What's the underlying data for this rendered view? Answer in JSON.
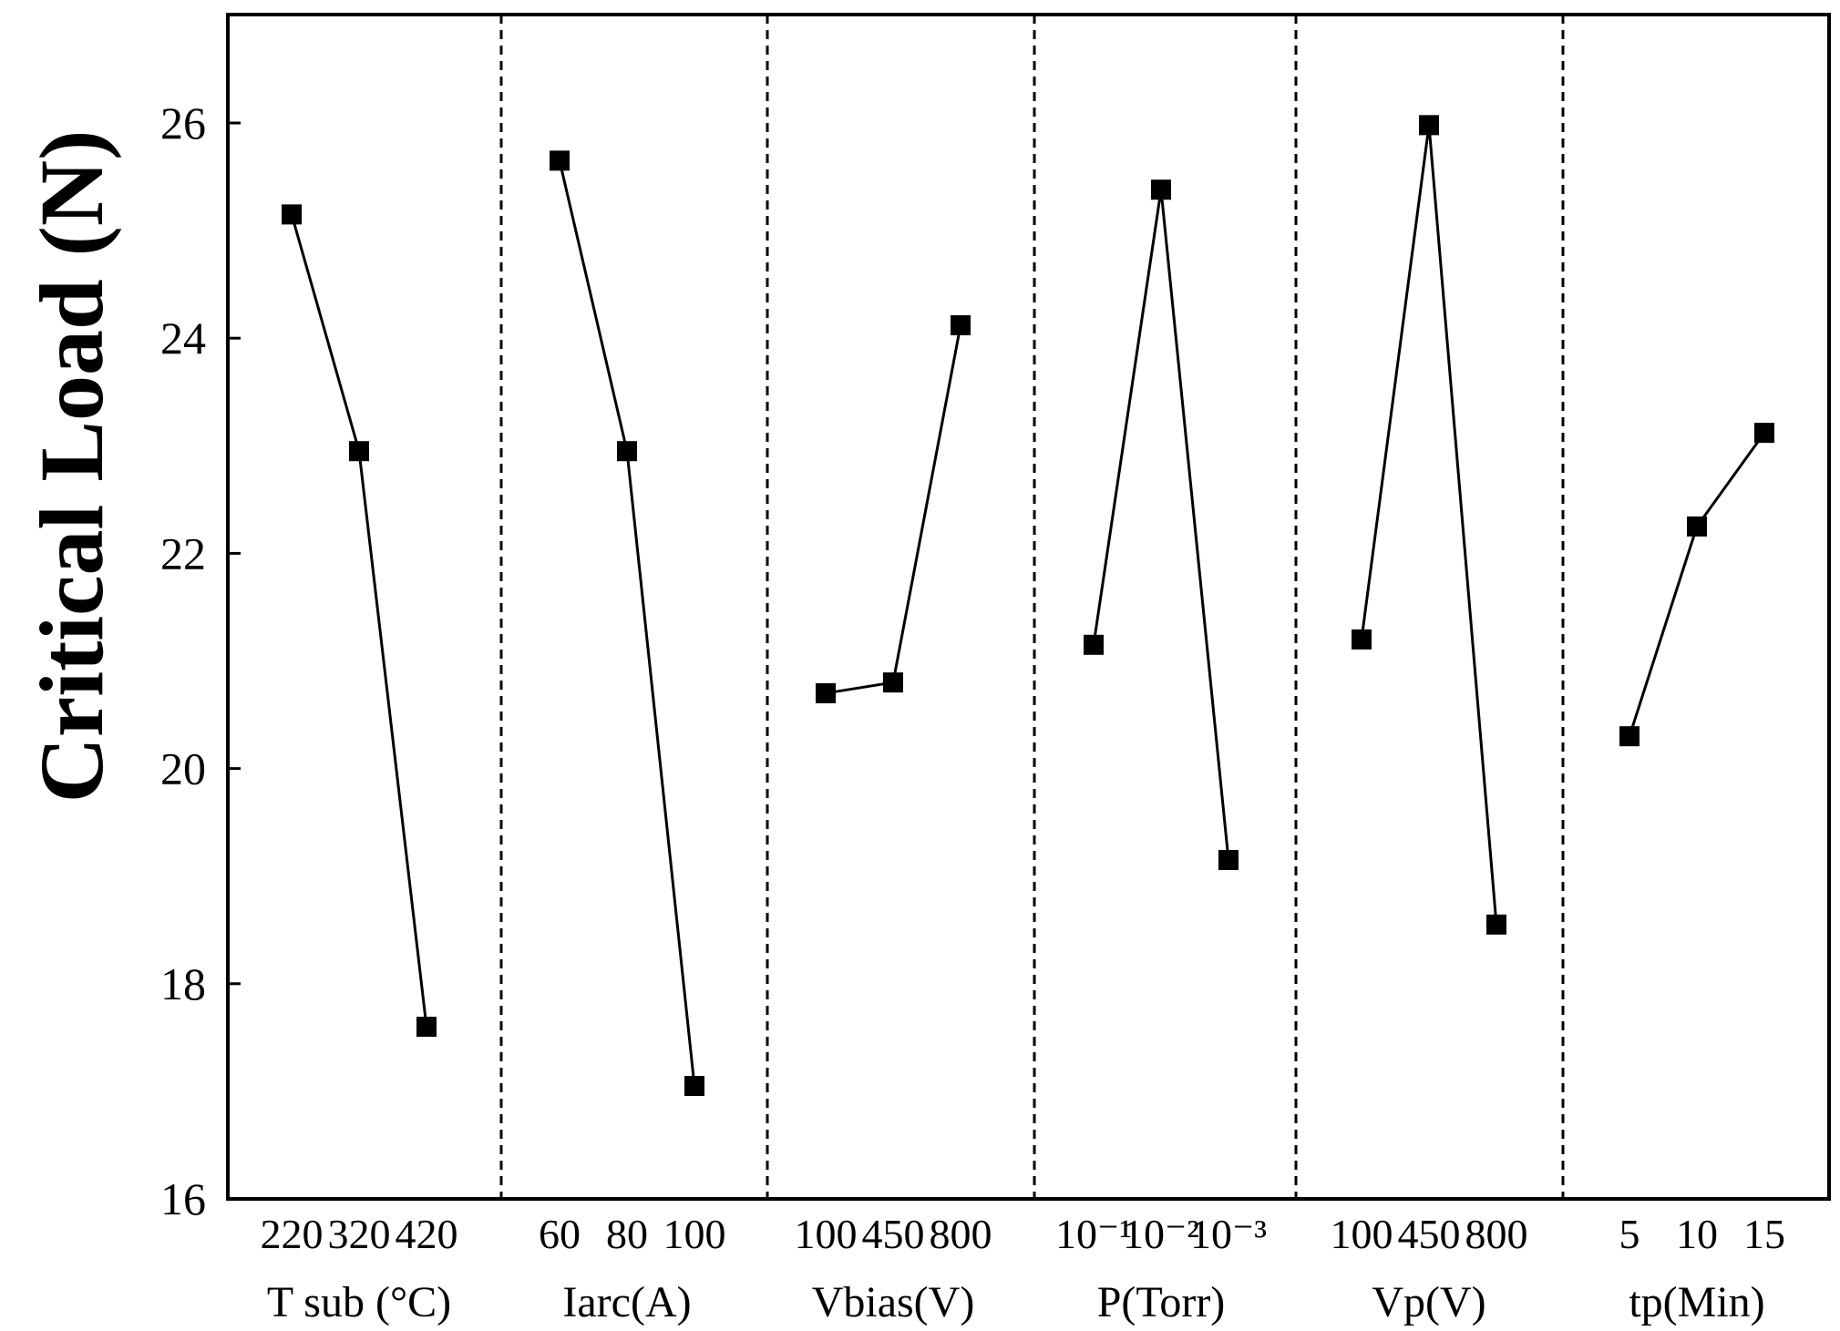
{
  "chart_data": {
    "type": "line",
    "ylabel": "Critical Load (N)",
    "ylim": [
      16,
      27
    ],
    "yticks": [
      16,
      18,
      20,
      22,
      24,
      26
    ],
    "grid": false,
    "groups": [
      {
        "xlabel": "T sub (°C)",
        "categories": [
          "220",
          "320",
          "420"
        ],
        "values": [
          25.15,
          22.95,
          17.6
        ]
      },
      {
        "xlabel": "Iarc(A)",
        "categories": [
          "60",
          "80",
          "100"
        ],
        "values": [
          25.65,
          22.95,
          17.05
        ]
      },
      {
        "xlabel": "Vbias(V)",
        "categories": [
          "100",
          "450",
          "800"
        ],
        "values": [
          20.7,
          20.8,
          24.12
        ]
      },
      {
        "xlabel": "P(Torr)",
        "categories": [
          "10⁻¹",
          "10⁻²",
          "10⁻³"
        ],
        "values": [
          21.15,
          25.38,
          19.15
        ]
      },
      {
        "xlabel": "Vp(V)",
        "categories": [
          "100",
          "450",
          "800"
        ],
        "values": [
          21.2,
          25.98,
          18.55
        ]
      },
      {
        "xlabel": "tp(Min)",
        "categories": [
          "5",
          "10",
          "15"
        ],
        "values": [
          20.3,
          22.25,
          23.12
        ]
      }
    ]
  }
}
